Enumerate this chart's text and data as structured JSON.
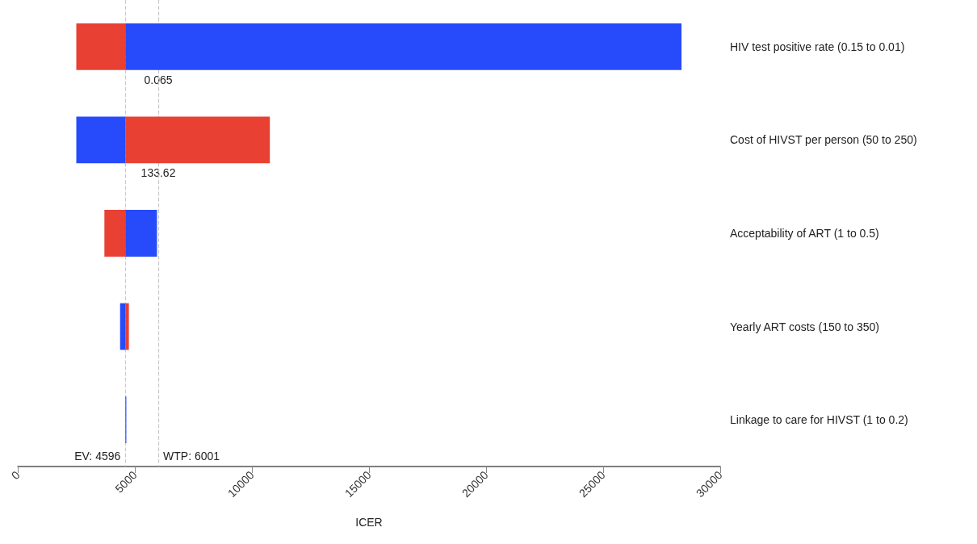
{
  "chart_data": {
    "type": "bar",
    "orientation": "horizontal",
    "xlabel": "ICER",
    "categories": [
      "HIV test positive rate (0.15 to 0.01)",
      "Cost of HIVST per person (50 to 250)",
      "Acceptability of ART (1 to 0.5)",
      "Yearly ART costs (150 to 350)",
      "Linkage to care for HIVST (1 to 0.2)"
    ],
    "series": [
      {
        "base": [
          2500,
          2500,
          3700,
          4370,
          null
        ],
        "values": [
          2100,
          2100,
          900,
          230,
          null
        ],
        "colors": [
          "#e84033",
          "#274afa",
          "#e84033",
          "#274afa",
          null
        ]
      },
      {
        "base": [
          4596,
          4596,
          4596,
          4596,
          4596
        ],
        "values": [
          23750,
          6170,
          1350,
          150,
          40
        ],
        "colors": [
          "#274afa",
          "#e84033",
          "#274afa",
          "#e84033",
          "#274afa"
        ]
      }
    ],
    "xlim": [
      0,
      30000
    ],
    "xticks": [
      0,
      5000,
      10000,
      15000,
      20000,
      25000,
      30000
    ],
    "grid": false,
    "ref_lines": [
      {
        "axis": "x",
        "value": 4596,
        "label": "EV: 4596",
        "color": "#c8c8c8",
        "line_style": "dashed"
      },
      {
        "axis": "x",
        "value": 6001,
        "label": "WTP: 6001",
        "color": "#c8c8c8",
        "line_style": "dashed"
      }
    ],
    "annotations": [
      {
        "text": "0.065",
        "x": 6001,
        "y": "HIV test positive rate (0.15 to 0.01)"
      },
      {
        "text": "133.62",
        "x": 6001,
        "y": "Cost of HIVST per person (50 to 250)"
      }
    ]
  }
}
